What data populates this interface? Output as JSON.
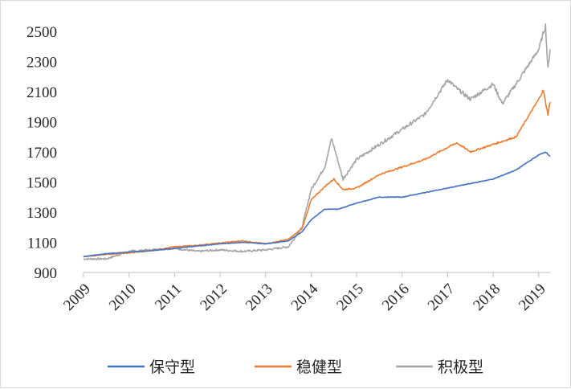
{
  "chart_data": {
    "type": "line",
    "title": "",
    "xlabel": "",
    "ylabel": "",
    "xlim": [
      2009,
      2019.25
    ],
    "ylim": [
      900,
      2500
    ],
    "y_ticks": [
      900,
      1100,
      1300,
      1500,
      1700,
      1900,
      2100,
      2300,
      2500
    ],
    "x_ticks": [
      "2009",
      "2010",
      "2011",
      "2012",
      "2013",
      "2014",
      "2015",
      "2016",
      "2017",
      "2018",
      "2019"
    ],
    "grid": false,
    "legend_position": "bottom",
    "series": [
      {
        "name": "保守型",
        "color": "#4472c4",
        "x": [
          2009.0,
          2009.5,
          2010.0,
          2010.5,
          2011.0,
          2011.5,
          2012.0,
          2012.5,
          2013.0,
          2013.5,
          2013.8,
          2014.0,
          2014.3,
          2014.6,
          2015.0,
          2015.5,
          2016.0,
          2016.5,
          2017.0,
          2017.5,
          2018.0,
          2018.5,
          2019.0,
          2019.15,
          2019.25
        ],
        "y": [
          1005,
          1025,
          1035,
          1045,
          1060,
          1075,
          1090,
          1100,
          1090,
          1110,
          1170,
          1250,
          1320,
          1320,
          1360,
          1400,
          1400,
          1430,
          1460,
          1490,
          1520,
          1580,
          1680,
          1700,
          1670
        ]
      },
      {
        "name": "稳健型",
        "color": "#ed7d31",
        "x": [
          2009.0,
          2009.5,
          2010.0,
          2010.5,
          2011.0,
          2011.5,
          2012.0,
          2012.5,
          2013.0,
          2013.5,
          2013.8,
          2014.0,
          2014.3,
          2014.5,
          2014.7,
          2015.0,
          2015.5,
          2016.0,
          2016.5,
          2017.0,
          2017.2,
          2017.5,
          2018.0,
          2018.5,
          2019.0,
          2019.1,
          2019.2,
          2019.25
        ],
        "y": [
          1005,
          1020,
          1030,
          1045,
          1070,
          1080,
          1095,
          1110,
          1090,
          1120,
          1190,
          1380,
          1470,
          1520,
          1450,
          1460,
          1550,
          1600,
          1650,
          1730,
          1760,
          1700,
          1750,
          1800,
          2050,
          2110,
          1950,
          2030
        ]
      },
      {
        "name": "积极型",
        "color": "#a5a5a5",
        "x": [
          2009.0,
          2009.5,
          2010.0,
          2010.5,
          2011.0,
          2011.5,
          2012.0,
          2012.5,
          2013.0,
          2013.5,
          2013.8,
          2014.0,
          2014.3,
          2014.45,
          2014.7,
          2015.0,
          2015.5,
          2016.0,
          2016.5,
          2017.0,
          2017.2,
          2017.5,
          2018.0,
          2018.2,
          2018.5,
          2019.0,
          2019.15,
          2019.2,
          2019.25
        ],
        "y": [
          990,
          990,
          1040,
          1050,
          1060,
          1040,
          1050,
          1040,
          1050,
          1070,
          1200,
          1450,
          1600,
          1790,
          1520,
          1650,
          1750,
          1850,
          1950,
          2180,
          2120,
          2050,
          2150,
          2020,
          2150,
          2380,
          2540,
          2250,
          2380
        ]
      }
    ]
  }
}
